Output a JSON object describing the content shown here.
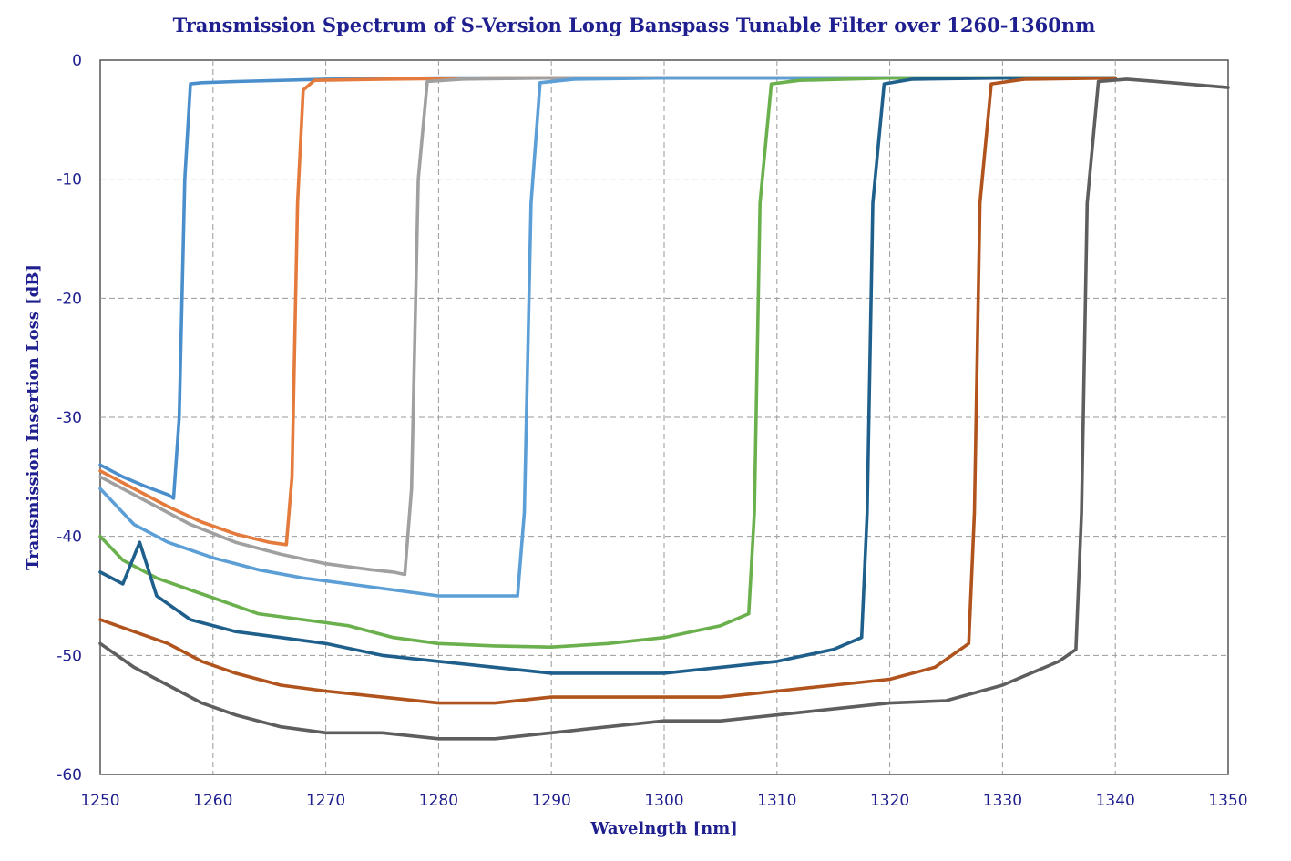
{
  "chart_data": {
    "type": "line",
    "title": "Transmission Spectrum of S-Version Long Banspass Tunable Filter over 1260-1360nm",
    "xlabel": "Wavelngth [nm]",
    "ylabel": "Transmission Insertion Loss [dB]",
    "xlim": [
      1250,
      1350
    ],
    "ylim": [
      -60,
      0
    ],
    "xticks": [
      1250,
      1260,
      1270,
      1280,
      1290,
      1300,
      1310,
      1320,
      1330,
      1340,
      1350
    ],
    "yticks": [
      0,
      -10,
      -20,
      -30,
      -40,
      -50,
      -60
    ],
    "grid": true,
    "legend": "none",
    "series": [
      {
        "color": "#4a8fcc",
        "x": [
          1250,
          1252,
          1254,
          1256,
          1256.5,
          1257,
          1257.5,
          1258,
          1259,
          1262,
          1270,
          1280,
          1290,
          1300,
          1310,
          1320,
          1330,
          1340
        ],
        "y": [
          -34,
          -35,
          -35.8,
          -36.5,
          -36.8,
          -30,
          -10,
          -2.0,
          -1.9,
          -1.8,
          -1.6,
          -1.5,
          -1.5,
          -1.5,
          -1.5,
          -1.5,
          -1.5,
          -1.5
        ]
      },
      {
        "color": "#e47a3c",
        "x": [
          1250,
          1253,
          1256,
          1259,
          1262,
          1265,
          1266.5,
          1267,
          1267.5,
          1268,
          1269,
          1275,
          1285,
          1295,
          1305,
          1315,
          1325,
          1335,
          1340
        ],
        "y": [
          -34.5,
          -36,
          -37.5,
          -38.8,
          -39.8,
          -40.5,
          -40.7,
          -35,
          -12,
          -2.5,
          -1.7,
          -1.6,
          -1.5,
          -1.5,
          -1.5,
          -1.5,
          -1.5,
          -1.5,
          -1.5
        ]
      },
      {
        "color": "#a0a0a0",
        "x": [
          1250,
          1254,
          1258,
          1262,
          1266,
          1270,
          1274,
          1276,
          1277,
          1277.6,
          1278.2,
          1279,
          1282,
          1290,
          1300,
          1310,
          1320,
          1330,
          1340
        ],
        "y": [
          -35,
          -37,
          -39,
          -40.5,
          -41.5,
          -42.3,
          -42.8,
          -43,
          -43.2,
          -36,
          -10,
          -1.8,
          -1.6,
          -1.5,
          -1.5,
          -1.5,
          -1.5,
          -1.5,
          -1.5
        ]
      },
      {
        "color": "#5b9fd6",
        "x": [
          1250,
          1253,
          1256,
          1260,
          1264,
          1268,
          1272,
          1276,
          1280,
          1284,
          1287,
          1287.6,
          1288.2,
          1289,
          1292,
          1300,
          1310,
          1320,
          1330,
          1340
        ],
        "y": [
          -36,
          -39,
          -40.5,
          -41.8,
          -42.8,
          -43.5,
          -44,
          -44.5,
          -45,
          -45,
          -45,
          -38,
          -12,
          -1.9,
          -1.6,
          -1.5,
          -1.5,
          -1.5,
          -1.5,
          -1.5
        ]
      },
      {
        "color": "#6ab04c",
        "x": [
          1250,
          1252,
          1255,
          1258,
          1261,
          1264,
          1268,
          1272,
          1276,
          1280,
          1285,
          1290,
          1295,
          1300,
          1305,
          1307.5,
          1308,
          1308.5,
          1309.5,
          1312,
          1320,
          1330,
          1340
        ],
        "y": [
          -40,
          -42,
          -43.5,
          -44.5,
          -45.5,
          -46.5,
          -47,
          -47.5,
          -48.5,
          -49,
          -49.2,
          -49.3,
          -49,
          -48.5,
          -47.5,
          -46.5,
          -38,
          -12,
          -2,
          -1.7,
          -1.5,
          -1.5,
          -1.5
        ]
      },
      {
        "color": "#1f5f8c",
        "x": [
          1250,
          1252,
          1253.5,
          1255,
          1258,
          1262,
          1266,
          1270,
          1275,
          1280,
          1285,
          1290,
          1295,
          1300,
          1305,
          1310,
          1315,
          1317.5,
          1318,
          1318.5,
          1319.5,
          1322,
          1330,
          1340
        ],
        "y": [
          -43,
          -44,
          -40.5,
          -45,
          -47,
          -48,
          -48.5,
          -49,
          -50,
          -50.5,
          -51,
          -51.5,
          -51.5,
          -51.5,
          -51,
          -50.5,
          -49.5,
          -48.5,
          -38,
          -12,
          -2,
          -1.6,
          -1.5,
          -1.5
        ]
      },
      {
        "color": "#b0531c",
        "x": [
          1250,
          1253,
          1256,
          1259,
          1262,
          1266,
          1270,
          1275,
          1280,
          1285,
          1290,
          1295,
          1300,
          1305,
          1310,
          1315,
          1320,
          1324,
          1327,
          1327.5,
          1328,
          1329,
          1332,
          1340
        ],
        "y": [
          -47,
          -48,
          -49,
          -50.5,
          -51.5,
          -52.5,
          -53,
          -53.5,
          -54,
          -54,
          -53.5,
          -53.5,
          -53.5,
          -53.5,
          -53,
          -52.5,
          -52,
          -51,
          -49,
          -38,
          -12,
          -2,
          -1.6,
          -1.5
        ]
      },
      {
        "color": "#5e5e5e",
        "x": [
          1250,
          1253,
          1256,
          1259,
          1262,
          1266,
          1270,
          1275,
          1280,
          1285,
          1290,
          1295,
          1300,
          1305,
          1310,
          1315,
          1320,
          1325,
          1330,
          1335,
          1336.5,
          1337,
          1337.5,
          1338.5,
          1341,
          1345,
          1350
        ],
        "y": [
          -49,
          -51,
          -52.5,
          -54,
          -55,
          -56,
          -56.5,
          -56.5,
          -57,
          -57,
          -56.5,
          -56,
          -55.5,
          -55.5,
          -55,
          -54.5,
          -54,
          -53.8,
          -52.5,
          -50.5,
          -49.5,
          -38,
          -12,
          -1.8,
          -1.6,
          -1.9,
          -2.3
        ]
      }
    ]
  }
}
